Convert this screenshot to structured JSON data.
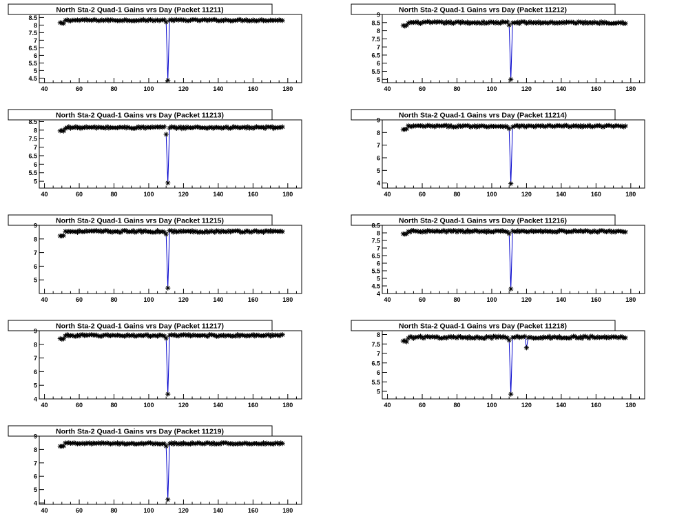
{
  "page": {
    "background": "#ffffff",
    "marker_color": "#000000",
    "line_color": "#0000cc"
  },
  "chart_data": [
    {
      "type": "line",
      "title": "North Sta-2 Quad-1 Gains vrs Day (Packet 11211)",
      "xlabel": "",
      "ylabel": "",
      "xlim": [
        37,
        188
      ],
      "ylim": [
        4.2,
        8.7
      ],
      "xticks": [
        40,
        60,
        80,
        100,
        120,
        140,
        160,
        180
      ],
      "yticks": [
        4,
        4.5,
        5,
        5.5,
        6,
        6.5,
        7,
        7.5,
        8,
        8.5
      ],
      "ytick_labels": [
        "",
        "4.5",
        "5",
        "5.5",
        "6",
        "6.5",
        "7",
        "7.5",
        "8",
        "8.5"
      ],
      "baseline": 8.32,
      "amp": 0.05,
      "first_offset": -0.2,
      "dip_pre": 8.2,
      "dip_value": 4.35,
      "extra_drop": null,
      "x_start": 49,
      "x_end": 177
    },
    {
      "type": "line",
      "title": "North Sta-2 Quad-1 Gains vrs Day (Packet 11212)",
      "xlabel": "",
      "ylabel": "",
      "xlim": [
        37,
        188
      ],
      "ylim": [
        4.8,
        9.0
      ],
      "xticks": [
        40,
        60,
        80,
        100,
        120,
        140,
        160,
        180
      ],
      "yticks": [
        5,
        5.5,
        6,
        6.5,
        7,
        7.5,
        8,
        8.5,
        9
      ],
      "ytick_labels": [
        "5",
        "5.5",
        "6",
        "6.5",
        "7",
        "7.5",
        "8",
        "8.5",
        "9"
      ],
      "baseline": 8.5,
      "amp": 0.06,
      "first_offset": -0.2,
      "dip_pre": 8.35,
      "dip_value": 5.0,
      "extra_drop": null,
      "x_start": 49,
      "x_end": 177
    },
    {
      "type": "line",
      "title": "North Sta-2 Quad-1 Gains vrs Day (Packet 11213)",
      "xlabel": "",
      "ylabel": "",
      "xlim": [
        37,
        188
      ],
      "ylim": [
        4.6,
        8.6
      ],
      "xticks": [
        40,
        60,
        80,
        100,
        120,
        140,
        160,
        180
      ],
      "yticks": [
        5,
        5.5,
        6,
        6.5,
        7,
        7.5,
        8,
        8.5
      ],
      "ytick_labels": [
        "5",
        "5.5",
        "6",
        "6.5",
        "7",
        "7.5",
        "8",
        "8.5"
      ],
      "baseline": 8.15,
      "amp": 0.06,
      "first_offset": -0.2,
      "dip_pre": 7.75,
      "dip_value": 4.9,
      "extra_drop": null,
      "x_start": 49,
      "x_end": 177
    },
    {
      "type": "line",
      "title": "North Sta-2 Quad-1 Gains vrs Day (Packet 11214)",
      "xlabel": "",
      "ylabel": "",
      "xlim": [
        37,
        188
      ],
      "ylim": [
        3.6,
        9.0
      ],
      "xticks": [
        40,
        60,
        80,
        100,
        120,
        140,
        160,
        180
      ],
      "yticks": [
        4,
        5,
        6,
        7,
        8,
        9
      ],
      "ytick_labels": [
        "4",
        "5",
        "6",
        "7",
        "8",
        "9"
      ],
      "baseline": 8.5,
      "amp": 0.07,
      "first_offset": -0.25,
      "dip_pre": 8.3,
      "dip_value": 3.95,
      "extra_drop": null,
      "x_start": 49,
      "x_end": 177
    },
    {
      "type": "line",
      "title": "North Sta-2 Quad-1 Gains vrs Day (Packet 11215)",
      "xlabel": "",
      "ylabel": "",
      "xlim": [
        37,
        188
      ],
      "ylim": [
        4.0,
        9.0
      ],
      "xticks": [
        40,
        60,
        80,
        100,
        120,
        140,
        160,
        180
      ],
      "yticks": [
        5,
        6,
        7,
        8,
        9
      ],
      "ytick_labels": [
        "5",
        "6",
        "7",
        "8",
        "9"
      ],
      "baseline": 8.55,
      "amp": 0.07,
      "first_offset": -0.3,
      "dip_pre": 8.35,
      "dip_value": 4.4,
      "extra_drop": null,
      "x_start": 49,
      "x_end": 177
    },
    {
      "type": "line",
      "title": "North Sta-2 Quad-1 Gains vrs Day (Packet 11216)",
      "xlabel": "",
      "ylabel": "",
      "xlim": [
        37,
        188
      ],
      "ylim": [
        4.0,
        8.5
      ],
      "xticks": [
        40,
        60,
        80,
        100,
        120,
        140,
        160,
        180
      ],
      "yticks": [
        4,
        4.5,
        5,
        5.5,
        6,
        6.5,
        7,
        7.5,
        8,
        8.5
      ],
      "ytick_labels": [
        "4",
        "4.5",
        "5",
        "5.5",
        "6",
        "6.5",
        "7",
        "7.5",
        "8",
        "8.5"
      ],
      "baseline": 8.1,
      "amp": 0.06,
      "first_offset": -0.2,
      "dip_pre": 7.95,
      "dip_value": 4.3,
      "extra_drop": null,
      "x_start": 49,
      "x_end": 177
    },
    {
      "type": "line",
      "title": "North Sta-2 Quad-1 Gains vrs Day (Packet 11217)",
      "xlabel": "",
      "ylabel": "",
      "xlim": [
        37,
        188
      ],
      "ylim": [
        4.0,
        9.0
      ],
      "xticks": [
        40,
        60,
        80,
        100,
        120,
        140,
        160,
        180
      ],
      "yticks": [
        4,
        5,
        6,
        7,
        8,
        9
      ],
      "ytick_labels": [
        "4",
        "5",
        "6",
        "7",
        "8",
        "9"
      ],
      "baseline": 8.65,
      "amp": 0.07,
      "first_offset": -0.25,
      "dip_pre": 8.45,
      "dip_value": 4.35,
      "extra_drop": null,
      "x_start": 49,
      "x_end": 177
    },
    {
      "type": "line",
      "title": "North Sta-2 Quad-1 Gains vrs Day (Packet 11218)",
      "xlabel": "",
      "ylabel": "",
      "xlim": [
        37,
        188
      ],
      "ylim": [
        4.6,
        8.2
      ],
      "xticks": [
        40,
        60,
        80,
        100,
        120,
        140,
        160,
        180
      ],
      "yticks": [
        5,
        5.5,
        6,
        6.5,
        7,
        7.5,
        8
      ],
      "ytick_labels": [
        "5",
        "5.5",
        "6",
        "6.5",
        "7",
        "7.5",
        "8"
      ],
      "baseline": 7.85,
      "amp": 0.06,
      "first_offset": -0.2,
      "dip_pre": 7.7,
      "dip_value": 4.85,
      "extra_drop": {
        "x": 120,
        "y": 7.3
      },
      "x_start": 49,
      "x_end": 177
    },
    {
      "type": "line",
      "title": "North Sta-2 Quad-1 Gains vrs Day (Packet 11219)",
      "xlabel": "",
      "ylabel": "",
      "xlim": [
        37,
        188
      ],
      "ylim": [
        3.9,
        9.0
      ],
      "xticks": [
        40,
        60,
        80,
        100,
        120,
        140,
        160,
        180
      ],
      "yticks": [
        4,
        5,
        6,
        7,
        8,
        9
      ],
      "ytick_labels": [
        "4",
        "5",
        "6",
        "7",
        "8",
        "9"
      ],
      "baseline": 8.45,
      "amp": 0.06,
      "first_offset": -0.2,
      "dip_pre": 8.25,
      "dip_value": 4.25,
      "extra_drop": null,
      "x_start": 49,
      "x_end": 177
    }
  ]
}
